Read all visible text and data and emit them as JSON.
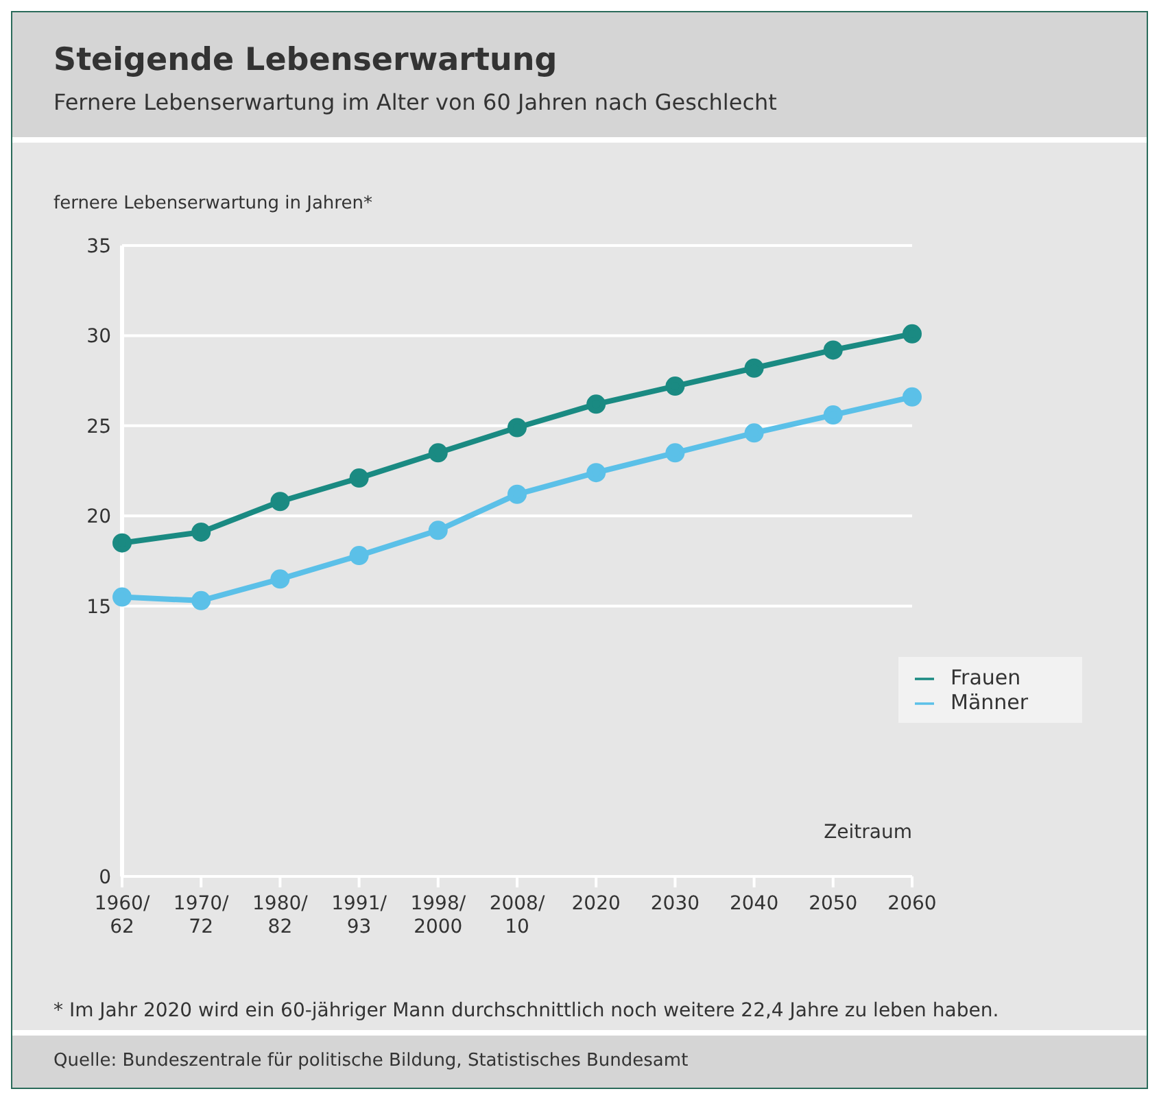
{
  "chart_data": {
    "type": "line",
    "title": "Steigende Lebenserwartung",
    "subtitle": "Fernere Lebenserwartung im Alter von 60 Jahren nach Geschlecht",
    "ylabel": "fernere Lebenserwartung in Jahren*",
    "xlabel": "Zeitraum",
    "categories": [
      "1960/62",
      "1970/72",
      "1980/82",
      "1991/93",
      "1998/2000",
      "2008/10",
      "2020",
      "2030",
      "2040",
      "2050",
      "2060"
    ],
    "series": [
      {
        "name": "Frauen",
        "color": "#1a8a82",
        "values": [
          18.5,
          19.1,
          20.8,
          22.1,
          23.5,
          24.9,
          26.2,
          27.2,
          28.2,
          29.2,
          30.1
        ]
      },
      {
        "name": "Männer",
        "color": "#5bc0e8",
        "values": [
          15.5,
          15.3,
          16.5,
          17.8,
          19.2,
          21.2,
          22.4,
          23.5,
          24.6,
          25.6,
          26.6
        ]
      }
    ],
    "ylim": [
      0,
      35
    ],
    "yticks": [
      0,
      15,
      20,
      25,
      30,
      35
    ],
    "grid": "y",
    "legend": "right",
    "marker": "circle",
    "line_style": "solid",
    "annotations": [
      "* Im Jahr 2020 wird ein 60-jähriger Mann durchschnittlich noch weitere 22,4 Jahre zu leben haben.",
      "Quelle: Bundeszentrale für politische Bildung, Statistisches Bundesamt"
    ]
  }
}
